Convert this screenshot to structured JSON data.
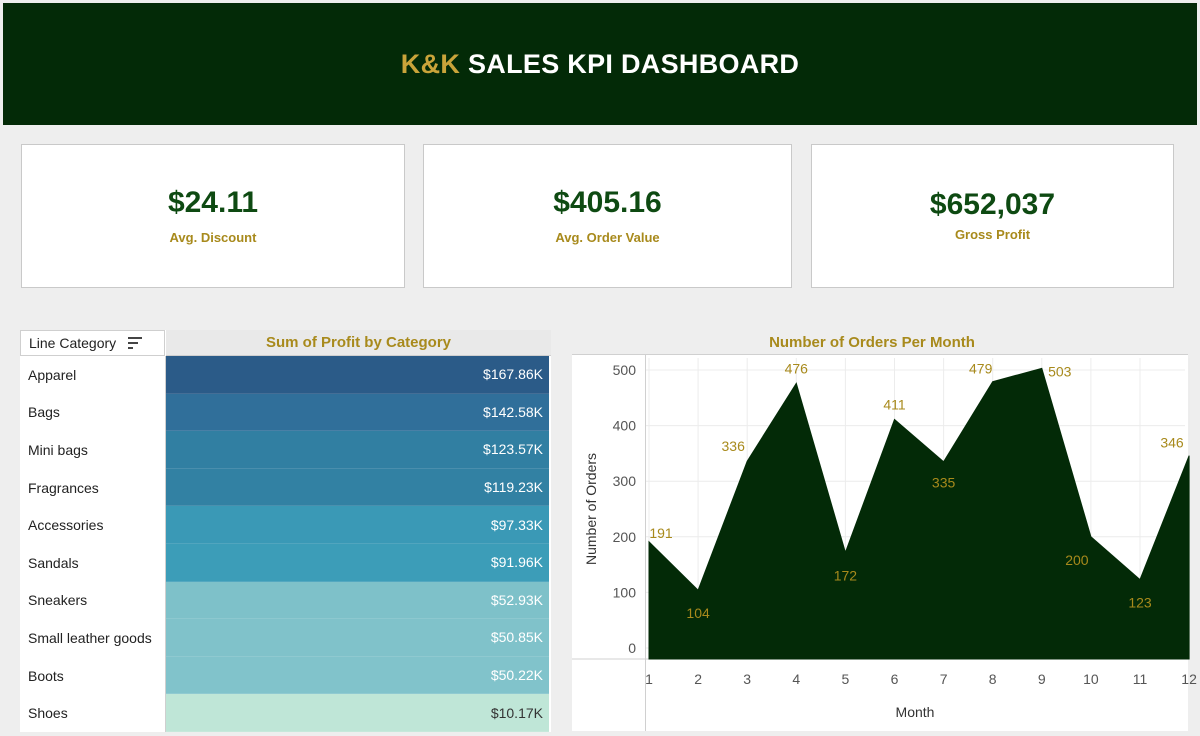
{
  "header": {
    "brand": "K&K",
    "title": "SALES KPI DASHBOARD"
  },
  "kpis": [
    {
      "value": "$24.11",
      "label": "Avg. Discount"
    },
    {
      "value": "$405.16",
      "label": "Avg. Order Value"
    },
    {
      "value": "$652,037",
      "label": "Gross Profit"
    }
  ],
  "colors": {
    "header_bg": "#032a07",
    "brand": "#c9a43a",
    "kpi_value": "#0e4a12",
    "label_gold": "#a88a1c",
    "area_fill": "#032a07"
  },
  "chart_data": [
    {
      "type": "table",
      "title": "Sum of Profit by Category",
      "row_header": "Line Category",
      "rows": [
        {
          "category": "Apparel",
          "label": "$167.86K",
          "value": 167.86,
          "color": "#2b5b88"
        },
        {
          "category": "Bags",
          "label": "$142.58K",
          "value": 142.58,
          "color": "#306f9a"
        },
        {
          "category": "Mini bags",
          "label": "$123.57K",
          "value": 123.57,
          "color": "#317fa2"
        },
        {
          "category": "Fragrances",
          "label": "$119.23K",
          "value": 119.23,
          "color": "#3281a3"
        },
        {
          "category": "Accessories",
          "label": "$97.33K",
          "value": 97.33,
          "color": "#3a99b6"
        },
        {
          "category": "Sandals",
          "label": "$91.96K",
          "value": 91.96,
          "color": "#3c9db8"
        },
        {
          "category": "Sneakers",
          "label": "$52.93K",
          "value": 52.93,
          "color": "#7ec1c9"
        },
        {
          "category": "Small leather goods",
          "label": "$50.85K",
          "value": 50.85,
          "color": "#80c2ca"
        },
        {
          "category": "Boots",
          "label": "$50.22K",
          "value": 50.22,
          "color": "#81c3cb"
        },
        {
          "category": "Shoes",
          "label": "$10.17K",
          "value": 10.17,
          "color": "#bfe6d7"
        }
      ]
    },
    {
      "type": "area",
      "title": "Number of Orders Per Month",
      "xlabel": "Month",
      "ylabel": "Number of Orders",
      "x": [
        1,
        2,
        3,
        4,
        5,
        6,
        7,
        8,
        9,
        10,
        11,
        12
      ],
      "y": [
        191,
        104,
        336,
        476,
        172,
        411,
        335,
        479,
        503,
        200,
        123,
        346
      ],
      "yticks": [
        0,
        100,
        200,
        300,
        400,
        500
      ],
      "ylim": [
        0,
        500
      ],
      "grid": true
    }
  ]
}
